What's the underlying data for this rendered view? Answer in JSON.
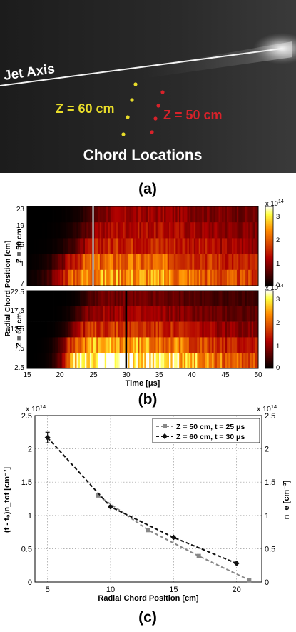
{
  "panel_a": {
    "jet_axis_label": "Jet Axis",
    "z60_label": "Z = 60 cm",
    "z50_label": "Z = 50 cm",
    "chords_label": "Chord Locations",
    "panel_label": "(a)",
    "colors": {
      "z60": "#e8dc2a",
      "z50": "#d8222a"
    }
  },
  "panel_b": {
    "panel_label": "(b)",
    "ylabel": "Radial Chord Position [cm]",
    "xlabel": "Time [μs]",
    "top": {
      "zlabel": "Z = 50 cm",
      "yticks": [
        "23",
        "19",
        "15",
        "11",
        "7"
      ],
      "colorbar_ticks": [
        "3",
        "2",
        "1",
        "0"
      ],
      "colorbar_scale": "x 10",
      "colorbar_exp": "14",
      "marker_time": 25
    },
    "bottom": {
      "zlabel": "Z = 60 cm",
      "yticks": [
        "22.5",
        "17.5",
        "12.5",
        "7.5",
        "2.5"
      ],
      "colorbar_ticks": [
        "3",
        "2",
        "1",
        "0"
      ],
      "colorbar_scale": "x 10",
      "colorbar_exp": "14",
      "marker_time": 30
    },
    "xticks": [
      "15",
      "20",
      "25",
      "30",
      "35",
      "40",
      "45",
      "50"
    ]
  },
  "panel_c": {
    "panel_label": "(c)",
    "left_exp_prefix": "x 10",
    "left_exp": "14",
    "right_exp_prefix": "x 10",
    "right_exp": "14",
    "ylabel_left": "(f - f₀)n_tot [cm⁻³]",
    "ylabel_right": "n_e [cm⁻³]",
    "xlabel": "Radial Chord Position [cm]",
    "xticks": [
      "5",
      "10",
      "15",
      "20"
    ],
    "yticks_left": [
      "0",
      "0.5",
      "1",
      "1.5",
      "2",
      "2.5"
    ],
    "yticks_right": [
      "0",
      "0.5",
      "1",
      "1.5",
      "2",
      "2.5"
    ],
    "legend": [
      "Z = 50 cm, t = 25 μs",
      "Z = 60 cm, t = 30 μs"
    ]
  },
  "chart_data": {
    "type": "line",
    "xlabel": "Radial Chord Position [cm]",
    "ylabel": "(f - f0)n_tot [cm^-3]",
    "xlim": [
      4,
      22
    ],
    "ylim": [
      0,
      2.5
    ],
    "y_scale_factor": "x 10^14",
    "grid": true,
    "legend_position": "top-right",
    "series": [
      {
        "name": "Z = 50 cm, t = 25 μs",
        "color": "#888888",
        "x": [
          9,
          13,
          17,
          21
        ],
        "y": [
          1.3,
          0.78,
          0.39,
          0.03
        ]
      },
      {
        "name": "Z = 60 cm, t = 30 μs",
        "color": "#111111",
        "x": [
          5,
          10,
          15,
          20
        ],
        "y": [
          2.17,
          1.13,
          0.67,
          0.28
        ]
      }
    ]
  }
}
